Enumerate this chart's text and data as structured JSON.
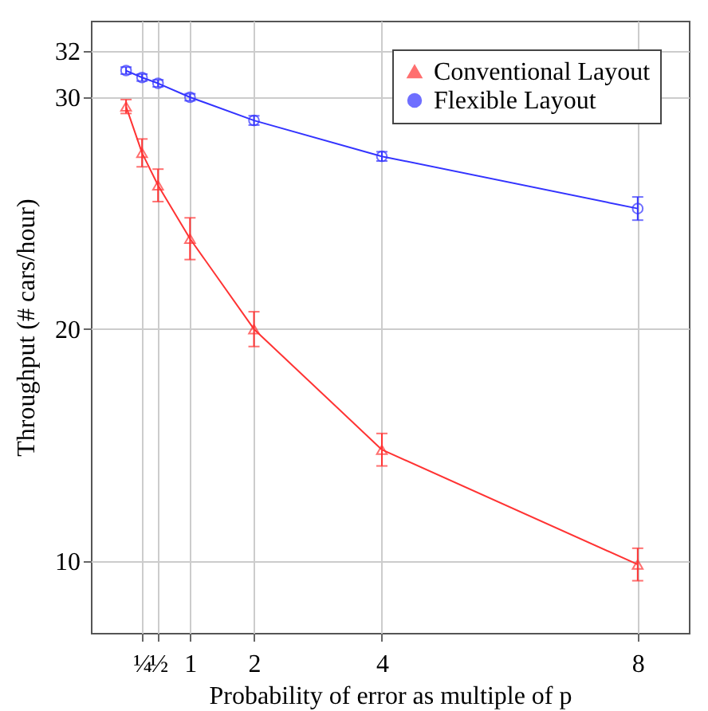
{
  "chart_data": {
    "type": "line",
    "xlabel": "Probability of error as multiple of p",
    "ylabel": "Throughput (# cars/hour)",
    "x": [
      0,
      0.25,
      0.5,
      1,
      2,
      4,
      8
    ],
    "xlim": [
      -0.55,
      8.8
    ],
    "xticks": [
      {
        "value": 0.25,
        "label": "¼"
      },
      {
        "value": 0.5,
        "label": "½"
      },
      1,
      2,
      4,
      8
    ],
    "ylim": [
      6.9,
      33.3
    ],
    "yticks": [
      10,
      20,
      30,
      32
    ],
    "grid": true,
    "legend": "top right",
    "line_style": "solid",
    "series": [
      {
        "name": "Conventional Layout",
        "color": "#ff3333",
        "marker": "triangle",
        "values": [
          29.6,
          27.6,
          26.2,
          23.9,
          20.0,
          14.8,
          9.85
        ],
        "errors": [
          0.3,
          0.6,
          0.7,
          0.9,
          0.75,
          0.7,
          0.7
        ]
      },
      {
        "name": "Flexible Layout",
        "color": "#3333ff",
        "marker": "circle",
        "values": [
          31.15,
          30.85,
          30.6,
          30.0,
          29.0,
          27.45,
          25.2
        ],
        "errors": [
          0.15,
          0.15,
          0.15,
          0.15,
          0.2,
          0.2,
          0.5
        ]
      }
    ]
  }
}
